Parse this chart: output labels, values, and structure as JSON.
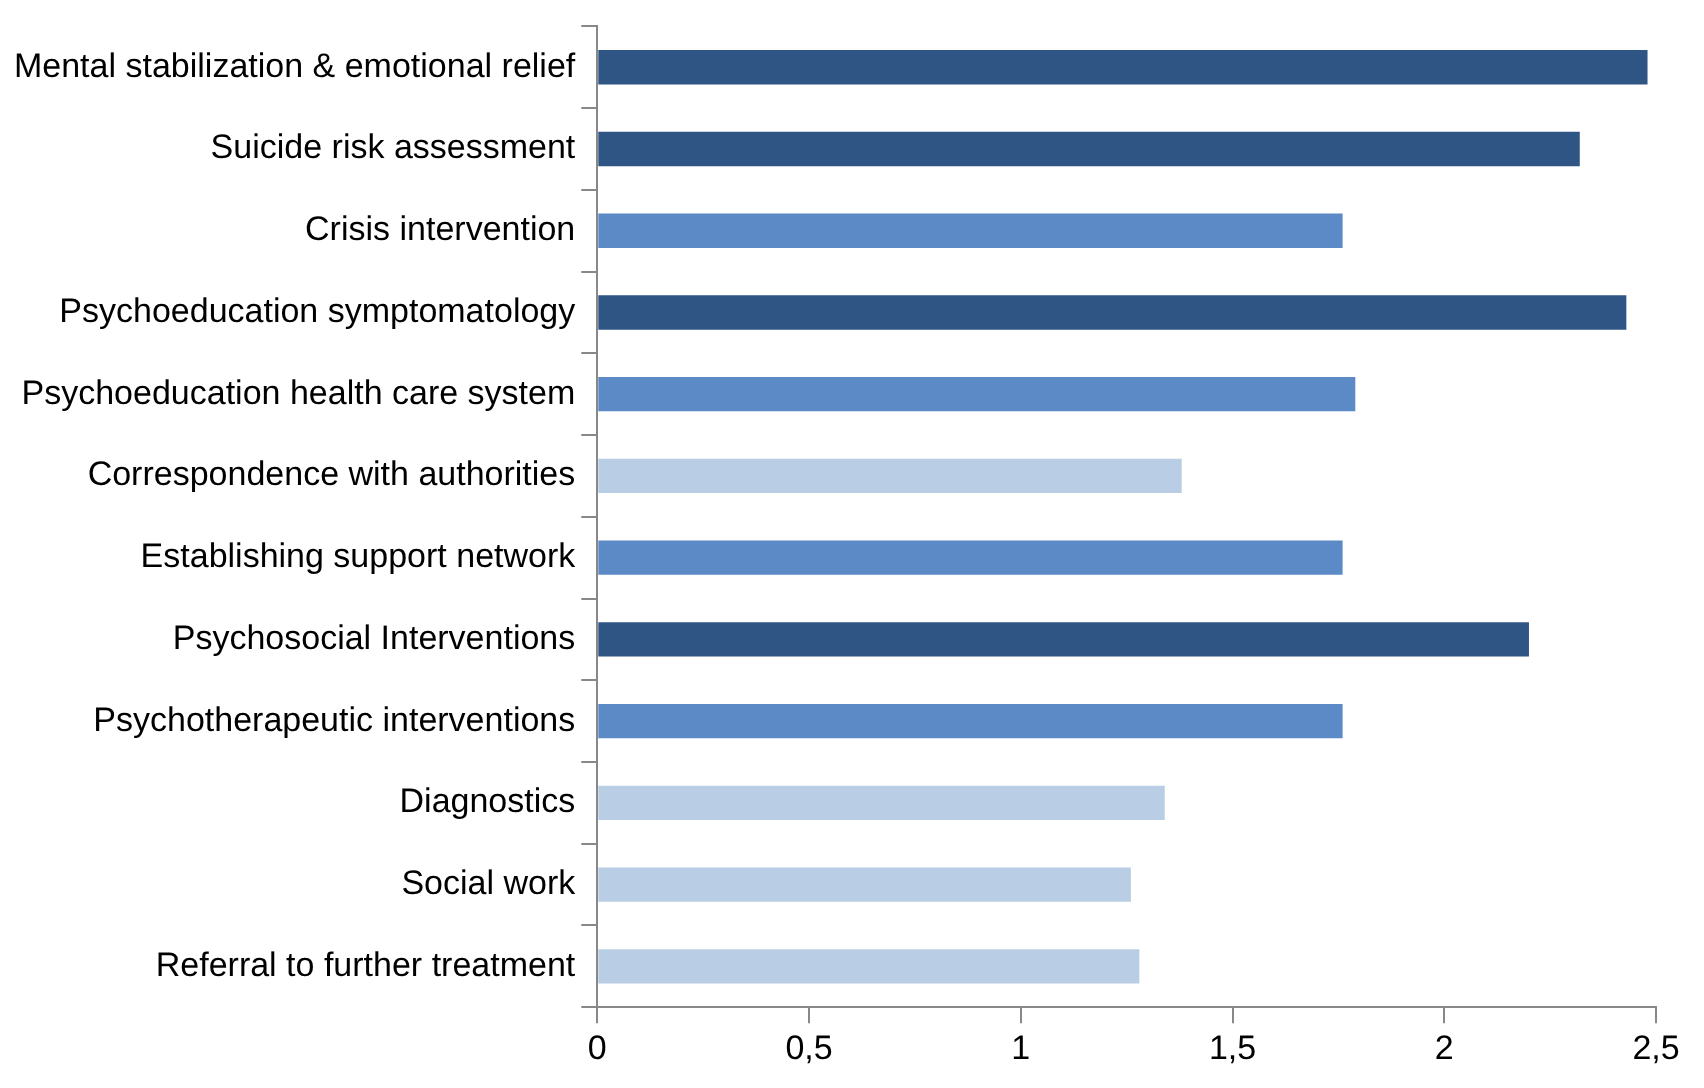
{
  "chart_data": {
    "type": "bar",
    "orientation": "horizontal",
    "categories": [
      "Mental stabilization & emotional relief",
      "Suicide risk assessment",
      "Crisis intervention",
      "Psychoeducation symptomatology",
      "Psychoeducation health care system",
      "Correspondence with authorities",
      "Establishing support network",
      "Psychosocial Interventions",
      "Psychotherapeutic interventions",
      "Diagnostics",
      "Social work",
      "Referral to further treatment"
    ],
    "values": [
      2.48,
      2.32,
      1.76,
      2.43,
      1.79,
      1.38,
      1.76,
      2.2,
      1.76,
      1.34,
      1.26,
      1.28
    ],
    "colors": [
      "#2f5584",
      "#2f5584",
      "#5b8ac6",
      "#2f5584",
      "#5b8ac6",
      "#b9cde5",
      "#5b8ac6",
      "#2f5584",
      "#5b8ac6",
      "#b9cde5",
      "#b9cde5",
      "#b9cde5"
    ],
    "xlim": [
      0,
      2.5
    ],
    "xticks": [
      0,
      {
        "value": 0.5,
        "label": "0,5"
      },
      1,
      {
        "value": 1.5,
        "label": "1,5"
      },
      2,
      {
        "value": 2.5,
        "label": "2,5"
      }
    ],
    "grid": false,
    "legend": false
  }
}
